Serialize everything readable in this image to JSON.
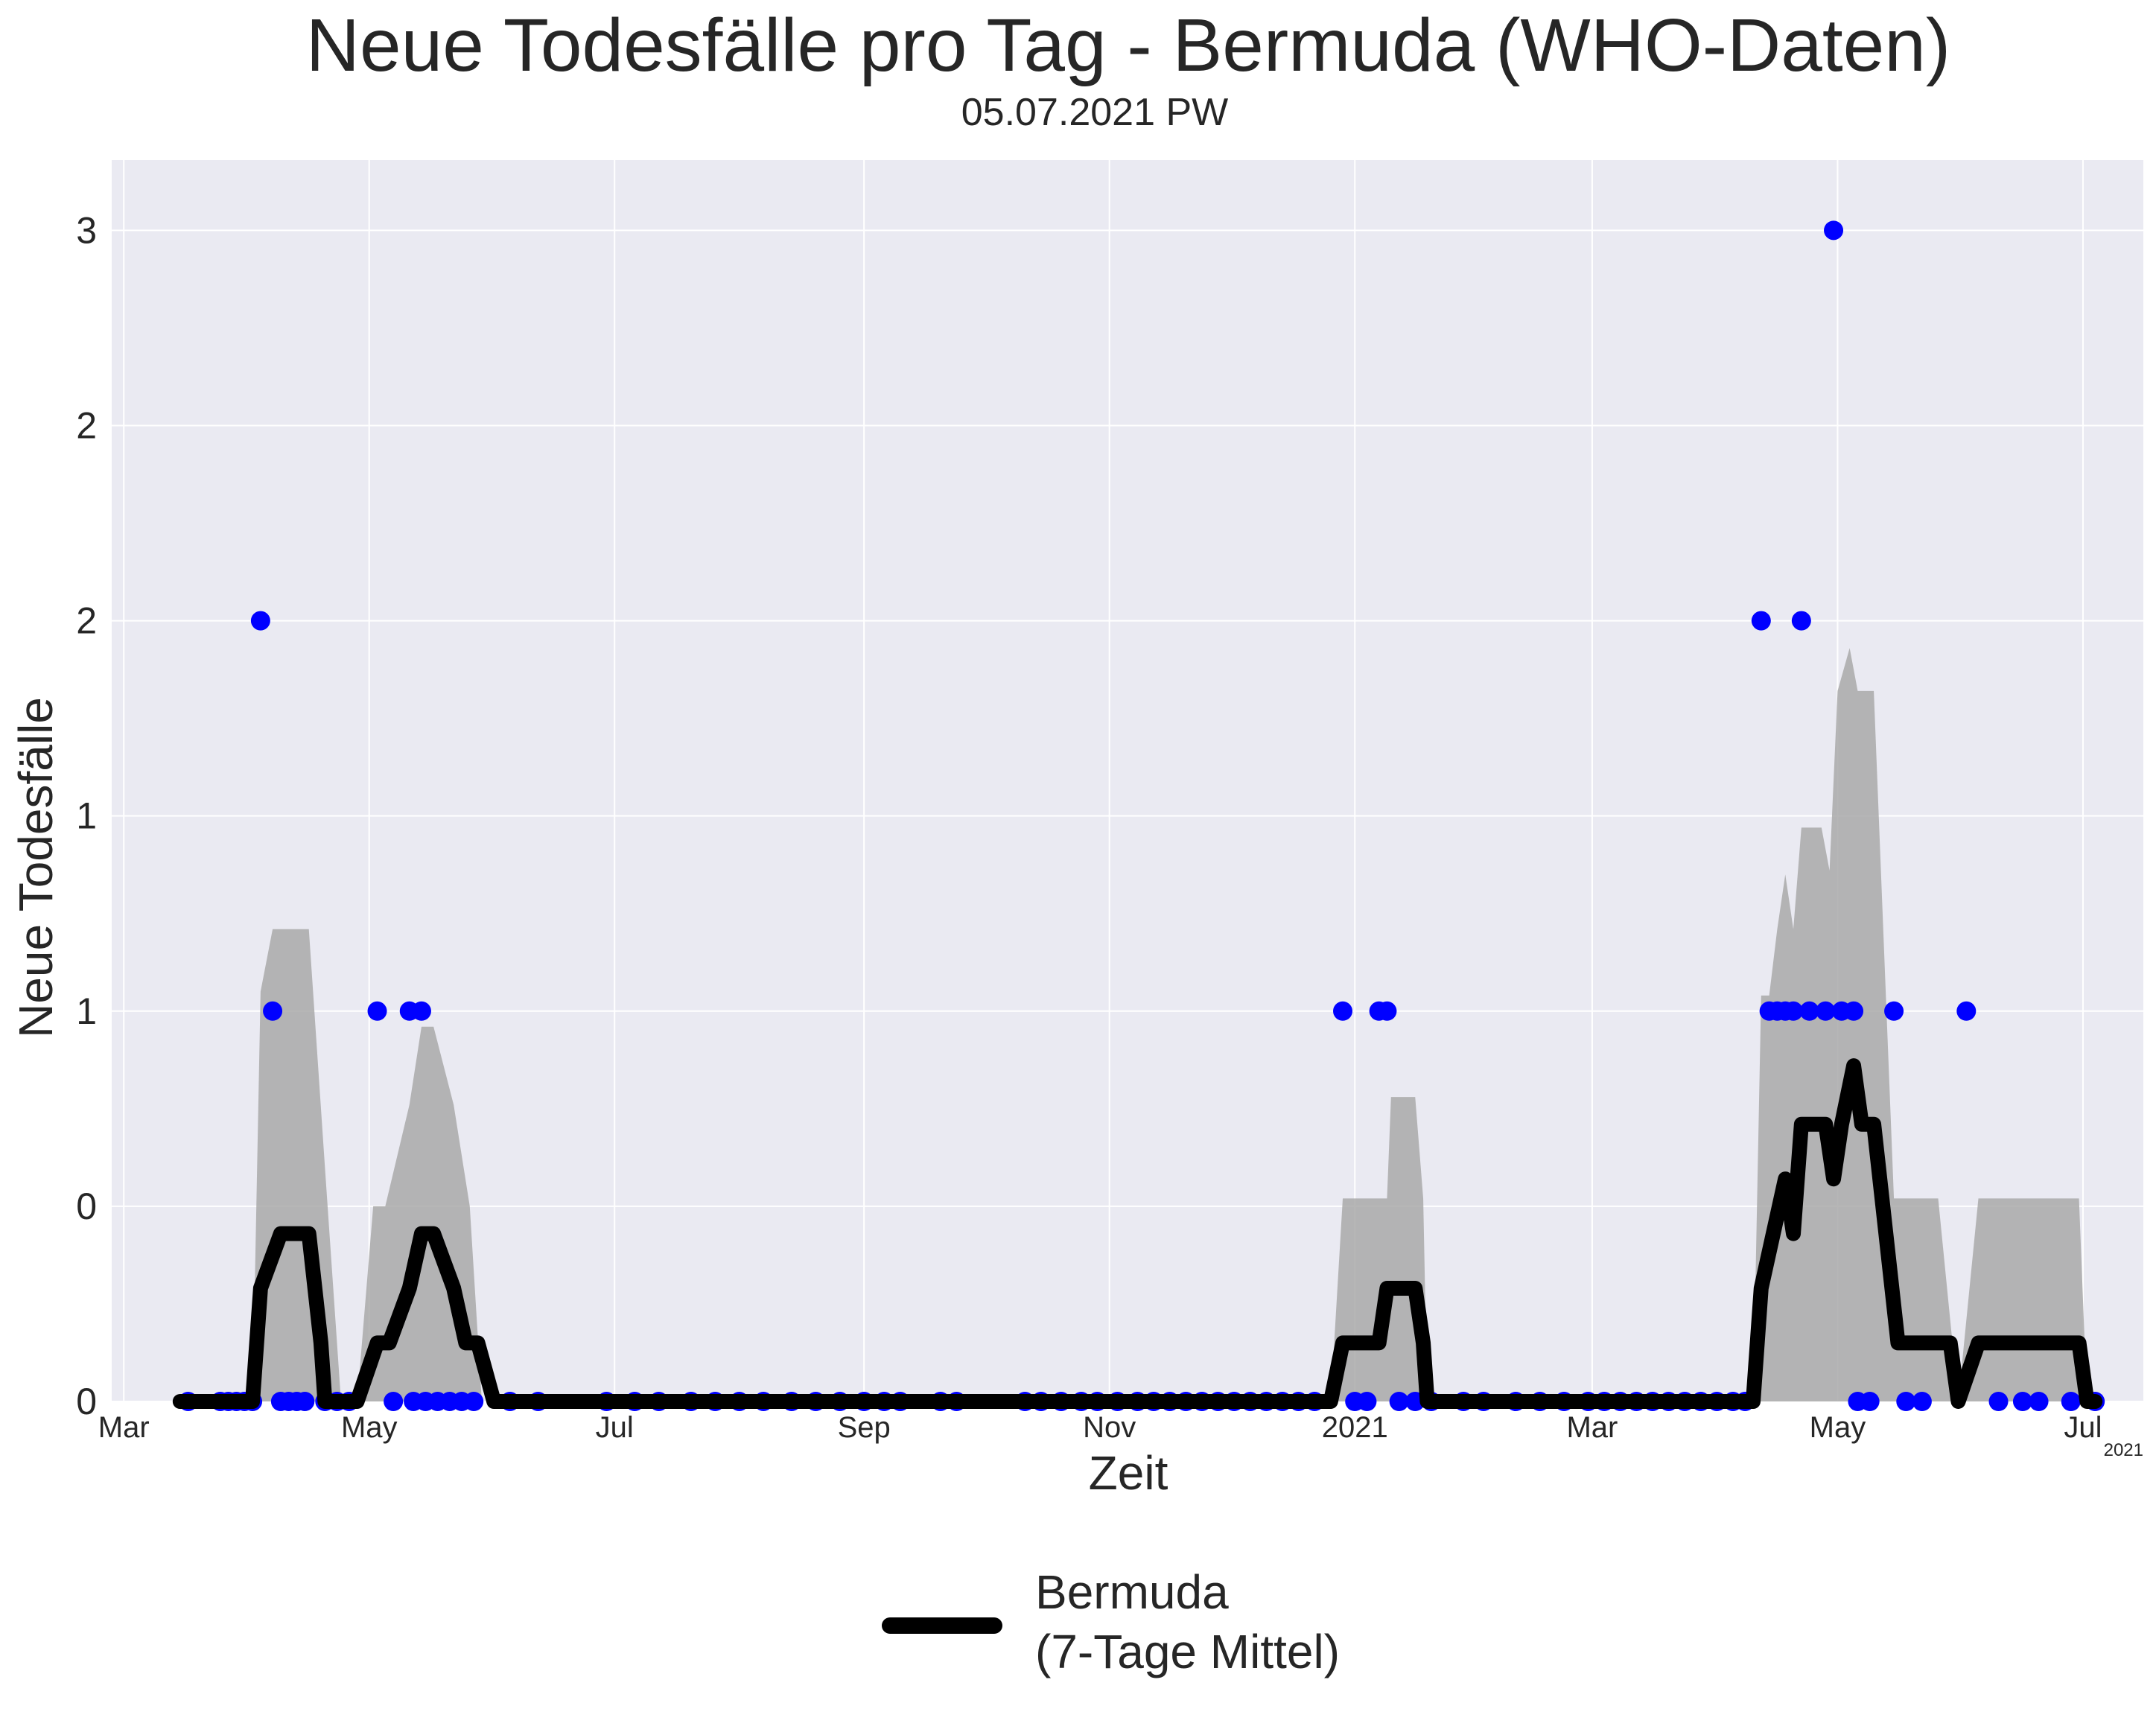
{
  "chart_data": {
    "type": "line",
    "title": "Neue Todesfälle pro Tag - Bermuda (WHO-Daten)",
    "subtitle": "05.07.2021 PW",
    "xlabel": "Zeit",
    "ylabel": "Neue Todesfälle",
    "x_offset_label": "2021",
    "xlim": [
      "2020-02-27",
      "2021-07-16"
    ],
    "ylim": [
      0,
      3.18
    ],
    "grid": true,
    "legend_position": "bottom-center",
    "x_ticks": [
      {
        "date": "2020-03-01",
        "label": "Mar"
      },
      {
        "date": "2020-05-01",
        "label": "May"
      },
      {
        "date": "2020-07-01",
        "label": "Jul"
      },
      {
        "date": "2020-09-01",
        "label": "Sep"
      },
      {
        "date": "2020-11-01",
        "label": "Nov"
      },
      {
        "date": "2021-01-01",
        "label": "2021"
      },
      {
        "date": "2021-03-01",
        "label": "Mar"
      },
      {
        "date": "2021-05-01",
        "label": "May"
      },
      {
        "date": "2021-07-01",
        "label": "Jul"
      }
    ],
    "y_ticks": [
      {
        "value": 0,
        "label": "0"
      },
      {
        "value": 0.5,
        "label": "0"
      },
      {
        "value": 1,
        "label": "1"
      },
      {
        "value": 1.5,
        "label": "1"
      },
      {
        "value": 2,
        "label": "2"
      },
      {
        "value": 2.5,
        "label": "2"
      },
      {
        "value": 3,
        "label": "3"
      }
    ],
    "colors": {
      "background": "#eaeaf2",
      "grid": "#ffffff",
      "points": "#0000ff",
      "line": "#000000",
      "band": "#a9a9a9"
    },
    "series": [
      {
        "type": "scatter",
        "points": [
          [
            "2020-03-17",
            0
          ],
          [
            "2020-03-25",
            0
          ],
          [
            "2020-03-27",
            0
          ],
          [
            "2020-03-29",
            0
          ],
          [
            "2020-03-31",
            0
          ],
          [
            "2020-04-02",
            0
          ],
          [
            "2020-04-04",
            2
          ],
          [
            "2020-04-07",
            1
          ],
          [
            "2020-04-09",
            0
          ],
          [
            "2020-04-11",
            0
          ],
          [
            "2020-04-13",
            0
          ],
          [
            "2020-04-15",
            0
          ],
          [
            "2020-04-20",
            0
          ],
          [
            "2020-04-23",
            0
          ],
          [
            "2020-04-26",
            0
          ],
          [
            "2020-05-03",
            1
          ],
          [
            "2020-05-07",
            0
          ],
          [
            "2020-05-11",
            1
          ],
          [
            "2020-05-14",
            1
          ],
          [
            "2020-05-12",
            0
          ],
          [
            "2020-05-15",
            0
          ],
          [
            "2020-05-18",
            0
          ],
          [
            "2020-05-21",
            0
          ],
          [
            "2020-05-24",
            0
          ],
          [
            "2020-05-27",
            0
          ],
          [
            "2020-06-05",
            0
          ],
          [
            "2020-06-12",
            0
          ],
          [
            "2020-06-29",
            0
          ],
          [
            "2020-07-06",
            0
          ],
          [
            "2020-07-12",
            0
          ],
          [
            "2020-07-20",
            0
          ],
          [
            "2020-07-26",
            0
          ],
          [
            "2020-08-01",
            0
          ],
          [
            "2020-08-07",
            0
          ],
          [
            "2020-08-14",
            0
          ],
          [
            "2020-08-20",
            0
          ],
          [
            "2020-08-26",
            0
          ],
          [
            "2020-09-01",
            0
          ],
          [
            "2020-09-06",
            0
          ],
          [
            "2020-09-10",
            0
          ],
          [
            "2020-09-20",
            0
          ],
          [
            "2020-09-24",
            0
          ],
          [
            "2020-10-11",
            0
          ],
          [
            "2020-10-15",
            0
          ],
          [
            "2020-10-20",
            0
          ],
          [
            "2020-10-25",
            0
          ],
          [
            "2020-10-29",
            0
          ],
          [
            "2020-11-03",
            0
          ],
          [
            "2020-11-08",
            0
          ],
          [
            "2020-11-12",
            0
          ],
          [
            "2020-11-16",
            0
          ],
          [
            "2020-11-20",
            0
          ],
          [
            "2020-11-24",
            0
          ],
          [
            "2020-11-28",
            0
          ],
          [
            "2020-12-02",
            0
          ],
          [
            "2020-12-06",
            0
          ],
          [
            "2020-12-10",
            0
          ],
          [
            "2020-12-14",
            0
          ],
          [
            "2020-12-18",
            0
          ],
          [
            "2020-12-22",
            0
          ],
          [
            "2020-12-29",
            1
          ],
          [
            "2021-01-01",
            0
          ],
          [
            "2021-01-04",
            0
          ],
          [
            "2021-01-07",
            1
          ],
          [
            "2021-01-09",
            1
          ],
          [
            "2021-01-12",
            0
          ],
          [
            "2021-01-16",
            0
          ],
          [
            "2021-01-20",
            0
          ],
          [
            "2021-01-28",
            0
          ],
          [
            "2021-02-02",
            0
          ],
          [
            "2021-02-10",
            0
          ],
          [
            "2021-02-16",
            0
          ],
          [
            "2021-02-22",
            0
          ],
          [
            "2021-02-28",
            0
          ],
          [
            "2021-03-04",
            0
          ],
          [
            "2021-03-08",
            0
          ],
          [
            "2021-03-12",
            0
          ],
          [
            "2021-03-16",
            0
          ],
          [
            "2021-03-20",
            0
          ],
          [
            "2021-03-24",
            0
          ],
          [
            "2021-03-28",
            0
          ],
          [
            "2021-04-01",
            0
          ],
          [
            "2021-04-05",
            0
          ],
          [
            "2021-04-08",
            0
          ],
          [
            "2021-04-12",
            2
          ],
          [
            "2021-04-14",
            1
          ],
          [
            "2021-04-16",
            1
          ],
          [
            "2021-04-18",
            1
          ],
          [
            "2021-04-20",
            1
          ],
          [
            "2021-04-22",
            2
          ],
          [
            "2021-04-24",
            1
          ],
          [
            "2021-04-28",
            1
          ],
          [
            "2021-04-30",
            3
          ],
          [
            "2021-05-02",
            1
          ],
          [
            "2021-05-05",
            1
          ],
          [
            "2021-05-06",
            0
          ],
          [
            "2021-05-09",
            0
          ],
          [
            "2021-05-15",
            1
          ],
          [
            "2021-05-18",
            0
          ],
          [
            "2021-05-22",
            0
          ],
          [
            "2021-06-02",
            1
          ],
          [
            "2021-06-10",
            0
          ],
          [
            "2021-06-16",
            0
          ],
          [
            "2021-06-20",
            0
          ],
          [
            "2021-06-28",
            0
          ],
          [
            "2021-07-04",
            0
          ]
        ]
      },
      {
        "name": "Bermuda\n(7-Tage Mittel)",
        "legend_line1": "Bermuda",
        "legend_line2": "(7-Tage Mittel)",
        "type": "line",
        "points": [
          [
            "2020-03-15",
            0
          ],
          [
            "2020-04-02",
            0
          ],
          [
            "2020-04-04",
            0.29
          ],
          [
            "2020-04-09",
            0.43
          ],
          [
            "2020-04-16",
            0.43
          ],
          [
            "2020-04-19",
            0.15
          ],
          [
            "2020-04-20",
            0
          ],
          [
            "2020-04-28",
            0
          ],
          [
            "2020-05-03",
            0.15
          ],
          [
            "2020-05-06",
            0.15
          ],
          [
            "2020-05-11",
            0.29
          ],
          [
            "2020-05-14",
            0.43
          ],
          [
            "2020-05-17",
            0.43
          ],
          [
            "2020-05-22",
            0.29
          ],
          [
            "2020-05-25",
            0.15
          ],
          [
            "2020-05-28",
            0.15
          ],
          [
            "2020-06-01",
            0
          ],
          [
            "2020-12-26",
            0
          ],
          [
            "2020-12-29",
            0.15
          ],
          [
            "2021-01-07",
            0.15
          ],
          [
            "2021-01-09",
            0.29
          ],
          [
            "2021-01-16",
            0.29
          ],
          [
            "2021-01-18",
            0.15
          ],
          [
            "2021-01-19",
            0
          ],
          [
            "2021-04-10",
            0
          ],
          [
            "2021-04-12",
            0.29
          ],
          [
            "2021-04-15",
            0.43
          ],
          [
            "2021-04-18",
            0.57
          ],
          [
            "2021-04-20",
            0.43
          ],
          [
            "2021-04-22",
            0.71
          ],
          [
            "2021-04-28",
            0.71
          ],
          [
            "2021-04-30",
            0.57
          ],
          [
            "2021-05-02",
            0.71
          ],
          [
            "2021-05-05",
            0.86
          ],
          [
            "2021-05-07",
            0.71
          ],
          [
            "2021-05-10",
            0.71
          ],
          [
            "2021-05-16",
            0.15
          ],
          [
            "2021-05-29",
            0.15
          ],
          [
            "2021-05-31",
            0
          ],
          [
            "2021-06-05",
            0.15
          ],
          [
            "2021-06-30",
            0.15
          ],
          [
            "2021-07-02",
            0
          ],
          [
            "2021-07-04",
            0
          ]
        ]
      },
      {
        "type": "area",
        "band_points": [
          [
            "2020-03-15",
            0
          ],
          [
            "2020-04-02",
            0
          ],
          [
            "2020-04-04",
            1.05
          ],
          [
            "2020-04-07",
            1.21
          ],
          [
            "2020-04-16",
            1.21
          ],
          [
            "2020-04-20",
            0.6
          ],
          [
            "2020-04-24",
            0
          ],
          [
            "2020-04-28",
            0
          ],
          [
            "2020-05-02",
            0.5
          ],
          [
            "2020-05-05",
            0.5
          ],
          [
            "2020-05-11",
            0.76
          ],
          [
            "2020-05-14",
            0.96
          ],
          [
            "2020-05-17",
            0.96
          ],
          [
            "2020-05-22",
            0.76
          ],
          [
            "2020-05-26",
            0.5
          ],
          [
            "2020-05-29",
            0
          ],
          [
            "2020-12-26",
            0
          ],
          [
            "2020-12-29",
            0.52
          ],
          [
            "2021-01-09",
            0.52
          ],
          [
            "2021-01-10",
            0.78
          ],
          [
            "2021-01-16",
            0.78
          ],
          [
            "2021-01-18",
            0.52
          ],
          [
            "2021-01-19",
            0
          ],
          [
            "2021-04-10",
            0
          ],
          [
            "2021-04-12",
            1.04
          ],
          [
            "2021-04-14",
            1.04
          ],
          [
            "2021-04-16",
            1.21
          ],
          [
            "2021-04-18",
            1.35
          ],
          [
            "2021-04-20",
            1.21
          ],
          [
            "2021-04-22",
            1.47
          ],
          [
            "2021-04-27",
            1.47
          ],
          [
            "2021-04-29",
            1.36
          ],
          [
            "2021-05-01",
            1.82
          ],
          [
            "2021-05-04",
            1.93
          ],
          [
            "2021-05-06",
            1.82
          ],
          [
            "2021-05-10",
            1.82
          ],
          [
            "2021-05-15",
            0.52
          ],
          [
            "2021-05-26",
            0.52
          ],
          [
            "2021-05-31",
            0
          ],
          [
            "2021-06-05",
            0.52
          ],
          [
            "2021-06-30",
            0.52
          ],
          [
            "2021-07-02",
            0
          ],
          [
            "2021-07-04",
            0
          ]
        ]
      }
    ]
  }
}
